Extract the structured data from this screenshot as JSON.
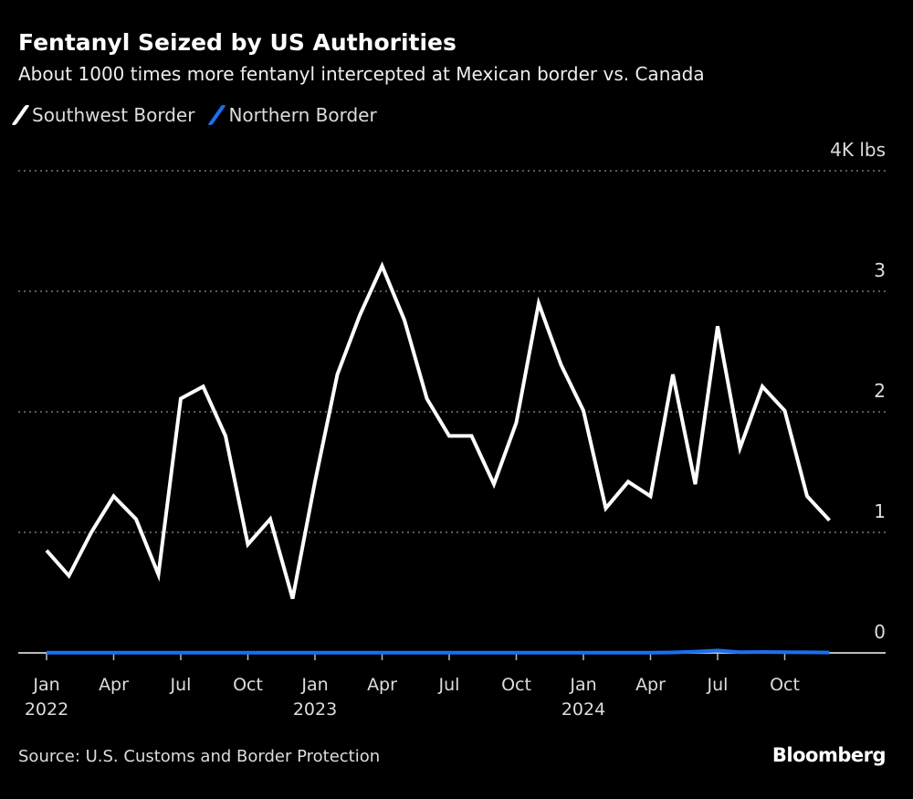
{
  "header": {
    "title": "Fentanyl Seized by US Authorities",
    "subtitle": "About 1000 times more fentanyl intercepted at Mexican border vs. Canada"
  },
  "footer": {
    "source": "Source: U.S. Customs and Border Protection",
    "logo": "Bloomberg"
  },
  "chart_data": {
    "type": "line",
    "title": "Fentanyl Seized by US Authorities",
    "subtitle": "About 1000 times more fentanyl intercepted at Mexican border vs. Canada",
    "yunit_label": "4K lbs",
    "ylim": [
      0,
      4
    ],
    "yticks": [
      "0",
      "1",
      "2",
      "3",
      "4K lbs"
    ],
    "ytick_values": [
      0,
      1,
      2,
      3,
      4
    ],
    "grid": true,
    "legend": "top-left",
    "xticks": [
      {
        "month": 0,
        "label": "Jan",
        "year": "2022"
      },
      {
        "month": 3,
        "label": "Apr",
        "year": ""
      },
      {
        "month": 6,
        "label": "Jul",
        "year": ""
      },
      {
        "month": 9,
        "label": "Oct",
        "year": ""
      },
      {
        "month": 12,
        "label": "Jan",
        "year": "2023"
      },
      {
        "month": 15,
        "label": "Apr",
        "year": ""
      },
      {
        "month": 18,
        "label": "Jul",
        "year": ""
      },
      {
        "month": 21,
        "label": "Oct",
        "year": ""
      },
      {
        "month": 24,
        "label": "Jan",
        "year": "2024"
      },
      {
        "month": 27,
        "label": "Apr",
        "year": ""
      },
      {
        "month": 30,
        "label": "Jul",
        "year": ""
      },
      {
        "month": 33,
        "label": "Oct",
        "year": ""
      }
    ],
    "x": [
      "2022-01",
      "2022-02",
      "2022-03",
      "2022-04",
      "2022-05",
      "2022-06",
      "2022-07",
      "2022-08",
      "2022-09",
      "2022-10",
      "2022-11",
      "2022-12",
      "2023-01",
      "2023-02",
      "2023-03",
      "2023-04",
      "2023-05",
      "2023-06",
      "2023-07",
      "2023-08",
      "2023-09",
      "2023-10",
      "2023-11",
      "2023-12",
      "2024-01",
      "2024-02",
      "2024-03",
      "2024-04",
      "2024-05",
      "2024-06",
      "2024-07",
      "2024-08",
      "2024-09",
      "2024-10",
      "2024-11",
      "2024-12"
    ],
    "series": [
      {
        "name": "Southwest Border",
        "color": "#ffffff",
        "values": [
          0.85,
          0.64,
          1.0,
          1.3,
          1.11,
          0.65,
          2.11,
          2.21,
          1.8,
          0.9,
          1.11,
          0.45,
          1.42,
          2.31,
          2.8,
          3.21,
          2.76,
          2.11,
          1.8,
          1.8,
          1.4,
          1.91,
          2.9,
          2.39,
          2.01,
          1.2,
          1.42,
          1.3,
          2.31,
          1.4,
          2.71,
          1.7,
          2.21,
          2.01,
          1.3,
          1.1
        ]
      },
      {
        "name": "Northern Border",
        "color": "#1a6ff0",
        "values": [
          0.002,
          0.002,
          0.002,
          0.002,
          0.002,
          0.002,
          0.002,
          0.002,
          0.002,
          0.002,
          0.002,
          0.002,
          0.002,
          0.002,
          0.002,
          0.002,
          0.002,
          0.002,
          0.002,
          0.002,
          0.002,
          0.002,
          0.002,
          0.002,
          0.002,
          0.002,
          0.002,
          0.002,
          0.004,
          0.01,
          0.02,
          0.006,
          0.008,
          0.006,
          0.005,
          0.003
        ]
      }
    ]
  }
}
